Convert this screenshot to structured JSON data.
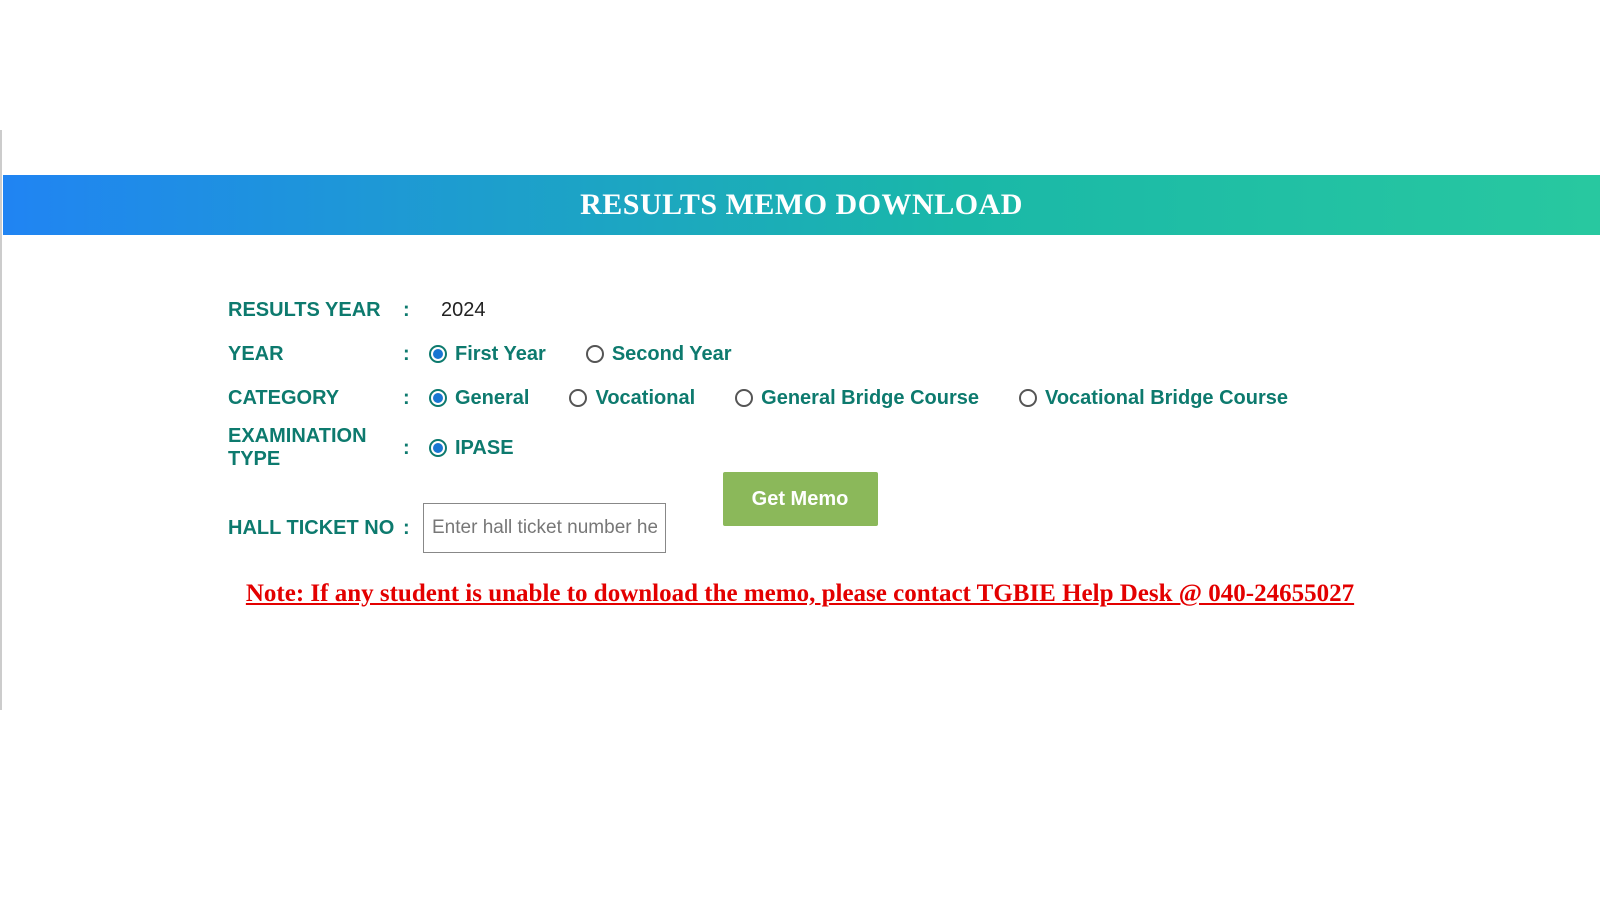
{
  "header": {
    "title": "RESULTS MEMO DOWNLOAD"
  },
  "form": {
    "results_year": {
      "label": "RESULTS YEAR",
      "value": "2024"
    },
    "year": {
      "label": "YEAR",
      "options": [
        {
          "label": "First Year",
          "checked": true
        },
        {
          "label": "Second Year",
          "checked": false
        }
      ]
    },
    "category": {
      "label": "CATEGORY",
      "options": [
        {
          "label": "General",
          "checked": true
        },
        {
          "label": "Vocational",
          "checked": false
        },
        {
          "label": "General Bridge Course",
          "checked": false
        },
        {
          "label": "Vocational Bridge Course",
          "checked": false
        }
      ]
    },
    "exam_type": {
      "label": "EXAMINATION TYPE",
      "options": [
        {
          "label": "IPASE",
          "checked": true
        }
      ]
    },
    "hall_ticket": {
      "label": "HALL TICKET NO",
      "placeholder": "Enter hall ticket number here"
    },
    "submit_label": "Get Memo"
  },
  "note": "Note: If any student is unable to download the memo, please contact TGBIE Help Desk @ 040-24655027",
  "colors": {
    "teal_text": "#0d7a6e",
    "header_gradient_start": "#2084f3",
    "header_gradient_end": "#28c8a0",
    "button_bg": "#8bb85a",
    "note_color": "#e30000",
    "radio_selected": "#1976d2"
  }
}
